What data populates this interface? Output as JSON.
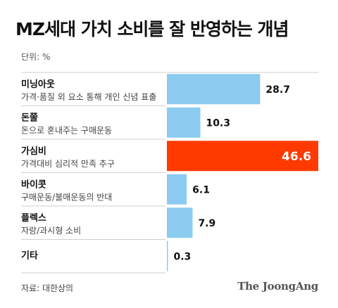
{
  "title": "MZ세대 가치 소비를 잘 반영하는 개념",
  "unit": "단위: %",
  "source": "자료: 대한상의",
  "logo": "The JoongAng",
  "colors": {
    "bar": "#8ccbf0",
    "highlight": "#ff3a00",
    "divider": "#cfcfcf"
  },
  "chart_data": {
    "type": "bar",
    "orientation": "horizontal",
    "categories": [
      "미닝아웃",
      "돈쭐",
      "가심비",
      "바이콧",
      "플렉스",
      "기타"
    ],
    "descriptions": [
      "가격·품질 외 요소 통해 개인 신념 표출",
      "돈으로 혼내주는 구매운동",
      "가격대비 심리적 만족 추구",
      "구매운동/불매운동의 반대",
      "자랑/과시형 소비",
      ""
    ],
    "values": [
      28.7,
      10.3,
      46.6,
      6.1,
      7.9,
      0.3
    ],
    "value_labels": [
      "28.7",
      "10.3",
      "46.6",
      "6.1",
      "7.9",
      "0.3"
    ],
    "highlight_index": 2,
    "xlim": [
      0,
      46.6
    ],
    "grid": false
  }
}
